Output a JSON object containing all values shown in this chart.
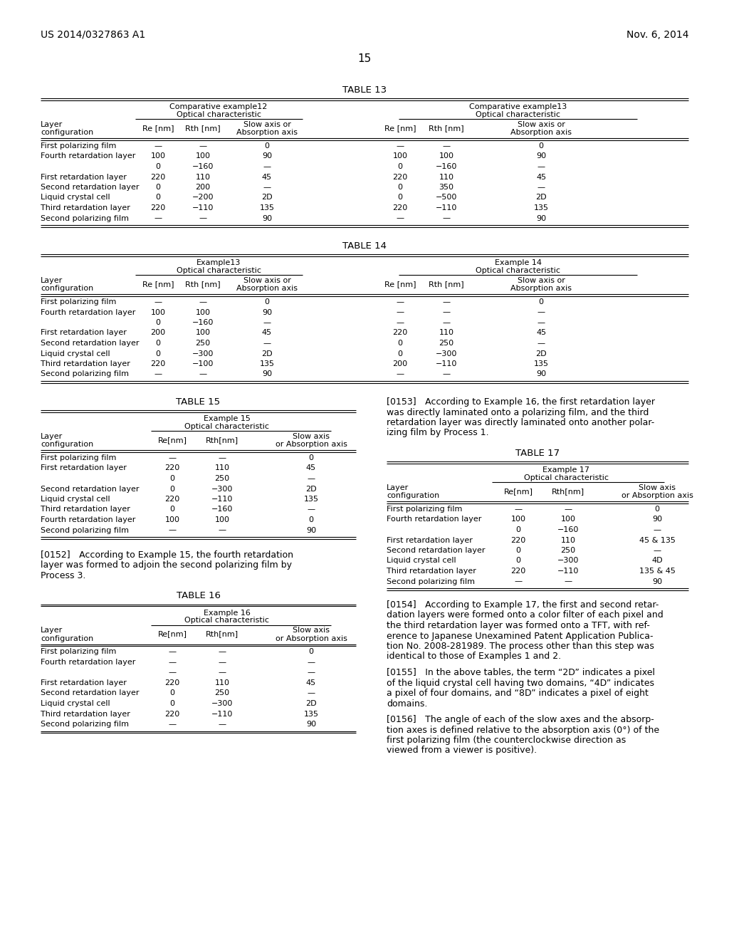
{
  "page_header_left": "US 2014/0327863 A1",
  "page_header_right": "Nov. 6, 2014",
  "page_number": "15",
  "background_color": "#ffffff",
  "table13": {
    "title": "TABLE 13",
    "grp1h1": "Comparative example12",
    "grp1h2": "Optical characteristic",
    "grp2h1": "Comparative example13",
    "grp2h2": "Optical characteristic",
    "rows": [
      [
        "First polarizing film",
        "—",
        "—",
        "0",
        "—",
        "—",
        "0"
      ],
      [
        "Fourth retardation layer",
        "100",
        "100",
        "90",
        "100",
        "100",
        "90"
      ],
      [
        "",
        "0",
        "−160",
        "—",
        "0",
        "−160",
        "—"
      ],
      [
        "First retardation layer",
        "220",
        "110",
        "45",
        "220",
        "110",
        "45"
      ],
      [
        "Second retardation layer",
        "0",
        "200",
        "—",
        "0",
        "350",
        "—"
      ],
      [
        "Liquid crystal cell",
        "0",
        "−200",
        "2D",
        "0",
        "−500",
        "2D"
      ],
      [
        "Third retardation layer",
        "220",
        "−110",
        "135",
        "220",
        "−110",
        "135"
      ],
      [
        "Second polarizing film",
        "—",
        "—",
        "90",
        "—",
        "—",
        "90"
      ]
    ]
  },
  "table14": {
    "title": "TABLE 14",
    "grp1h1": "Example13",
    "grp1h2": "Optical characteristic",
    "grp2h1": "Example 14",
    "grp2h2": "Optical characteristic",
    "rows": [
      [
        "First polarizing film",
        "—",
        "—",
        "0",
        "—",
        "—",
        "0"
      ],
      [
        "Fourth retardation layer",
        "100",
        "100",
        "90",
        "—",
        "—",
        "—"
      ],
      [
        "",
        "0",
        "−160",
        "—",
        "—",
        "—",
        "—"
      ],
      [
        "First retardation layer",
        "200",
        "100",
        "45",
        "220",
        "110",
        "45"
      ],
      [
        "Second retardation layer",
        "0",
        "250",
        "—",
        "0",
        "250",
        "—"
      ],
      [
        "Liquid crystal cell",
        "0",
        "−300",
        "2D",
        "0",
        "−300",
        "2D"
      ],
      [
        "Third retardation layer",
        "220",
        "−100",
        "135",
        "200",
        "−110",
        "135"
      ],
      [
        "Second polarizing film",
        "—",
        "—",
        "90",
        "—",
        "—",
        "90"
      ]
    ]
  },
  "table15": {
    "title": "TABLE 15",
    "grp1h1": "Example 15",
    "grp1h2": "Optical characteristic",
    "rows": [
      [
        "First polarizing film",
        "—",
        "—",
        "0"
      ],
      [
        "First retardation layer",
        "220",
        "110",
        "45"
      ],
      [
        "",
        "0",
        "250",
        "—"
      ],
      [
        "Second retardation layer",
        "0",
        "−300",
        "2D"
      ],
      [
        "Liquid crystal cell",
        "220",
        "−110",
        "135"
      ],
      [
        "Third retardation layer",
        "0",
        "−160",
        "—"
      ],
      [
        "Fourth retardation layer",
        "100",
        "100",
        "0"
      ],
      [
        "Second polarizing film",
        "—",
        "—",
        "90"
      ]
    ]
  },
  "table16": {
    "title": "TABLE 16",
    "grp1h1": "Example 16",
    "grp1h2": "Optical characteristic",
    "rows": [
      [
        "First polarizing film",
        "—",
        "—",
        "0"
      ],
      [
        "Fourth retardation layer",
        "—",
        "—",
        "—"
      ],
      [
        "",
        "—",
        "—",
        "—"
      ],
      [
        "First retardation layer",
        "220",
        "110",
        "45"
      ],
      [
        "Second retardation layer",
        "0",
        "250",
        "—"
      ],
      [
        "Liquid crystal cell",
        "0",
        "−300",
        "2D"
      ],
      [
        "Third retardation layer",
        "220",
        "−110",
        "135"
      ],
      [
        "Second polarizing film",
        "—",
        "—",
        "90"
      ]
    ]
  },
  "table17": {
    "title": "TABLE 17",
    "grp1h1": "Example 17",
    "grp1h2": "Optical characteristic",
    "rows": [
      [
        "First polarizing film",
        "—",
        "—",
        "0"
      ],
      [
        "Fourth retardation layer",
        "100",
        "100",
        "90"
      ],
      [
        "",
        "0",
        "−160",
        "—"
      ],
      [
        "First retardation layer",
        "220",
        "110",
        "45 & 135"
      ],
      [
        "Second retardation layer",
        "0",
        "250",
        "—"
      ],
      [
        "Liquid crystal cell",
        "0",
        "−300",
        "4D"
      ],
      [
        "Third retardation layer",
        "220",
        "−110",
        "135 & 45"
      ],
      [
        "Second polarizing film",
        "—",
        "—",
        "90"
      ]
    ]
  },
  "para152_lines": [
    "[0152] According to Example 15, the fourth retardation",
    "layer was formed to adjoin the second polarizing film by",
    "Process 3."
  ],
  "para153_lines": [
    "[0153] According to Example 16, the first retardation layer",
    "was directly laminated onto a polarizing film, and the third",
    "retardation layer was directly laminated onto another polar-",
    "izing film by Process 1."
  ],
  "para154_lines": [
    "[0154] According to Example 17, the first and second retar-",
    "dation layers were formed onto a color filter of each pixel and",
    "the third retardation layer was formed onto a TFT, with ref-",
    "erence to Japanese Unexamined Patent Application Publica-",
    "tion No. 2008-281989. The process other than this step was",
    "identical to those of Examples 1 and 2."
  ],
  "para155_lines": [
    "[0155] In the above tables, the term “2D” indicates a pixel",
    "of the liquid crystal cell having two domains, “4D” indicates",
    "a pixel of four domains, and “8D” indicates a pixel of eight",
    "domains."
  ],
  "para156_lines": [
    "[0156] The angle of each of the slow axes and the absorp-",
    "tion axes is defined relative to the absorption axis (0°) of the",
    "first polarizing film (the counterclockwise direction as",
    "viewed from a viewer is positive)."
  ]
}
